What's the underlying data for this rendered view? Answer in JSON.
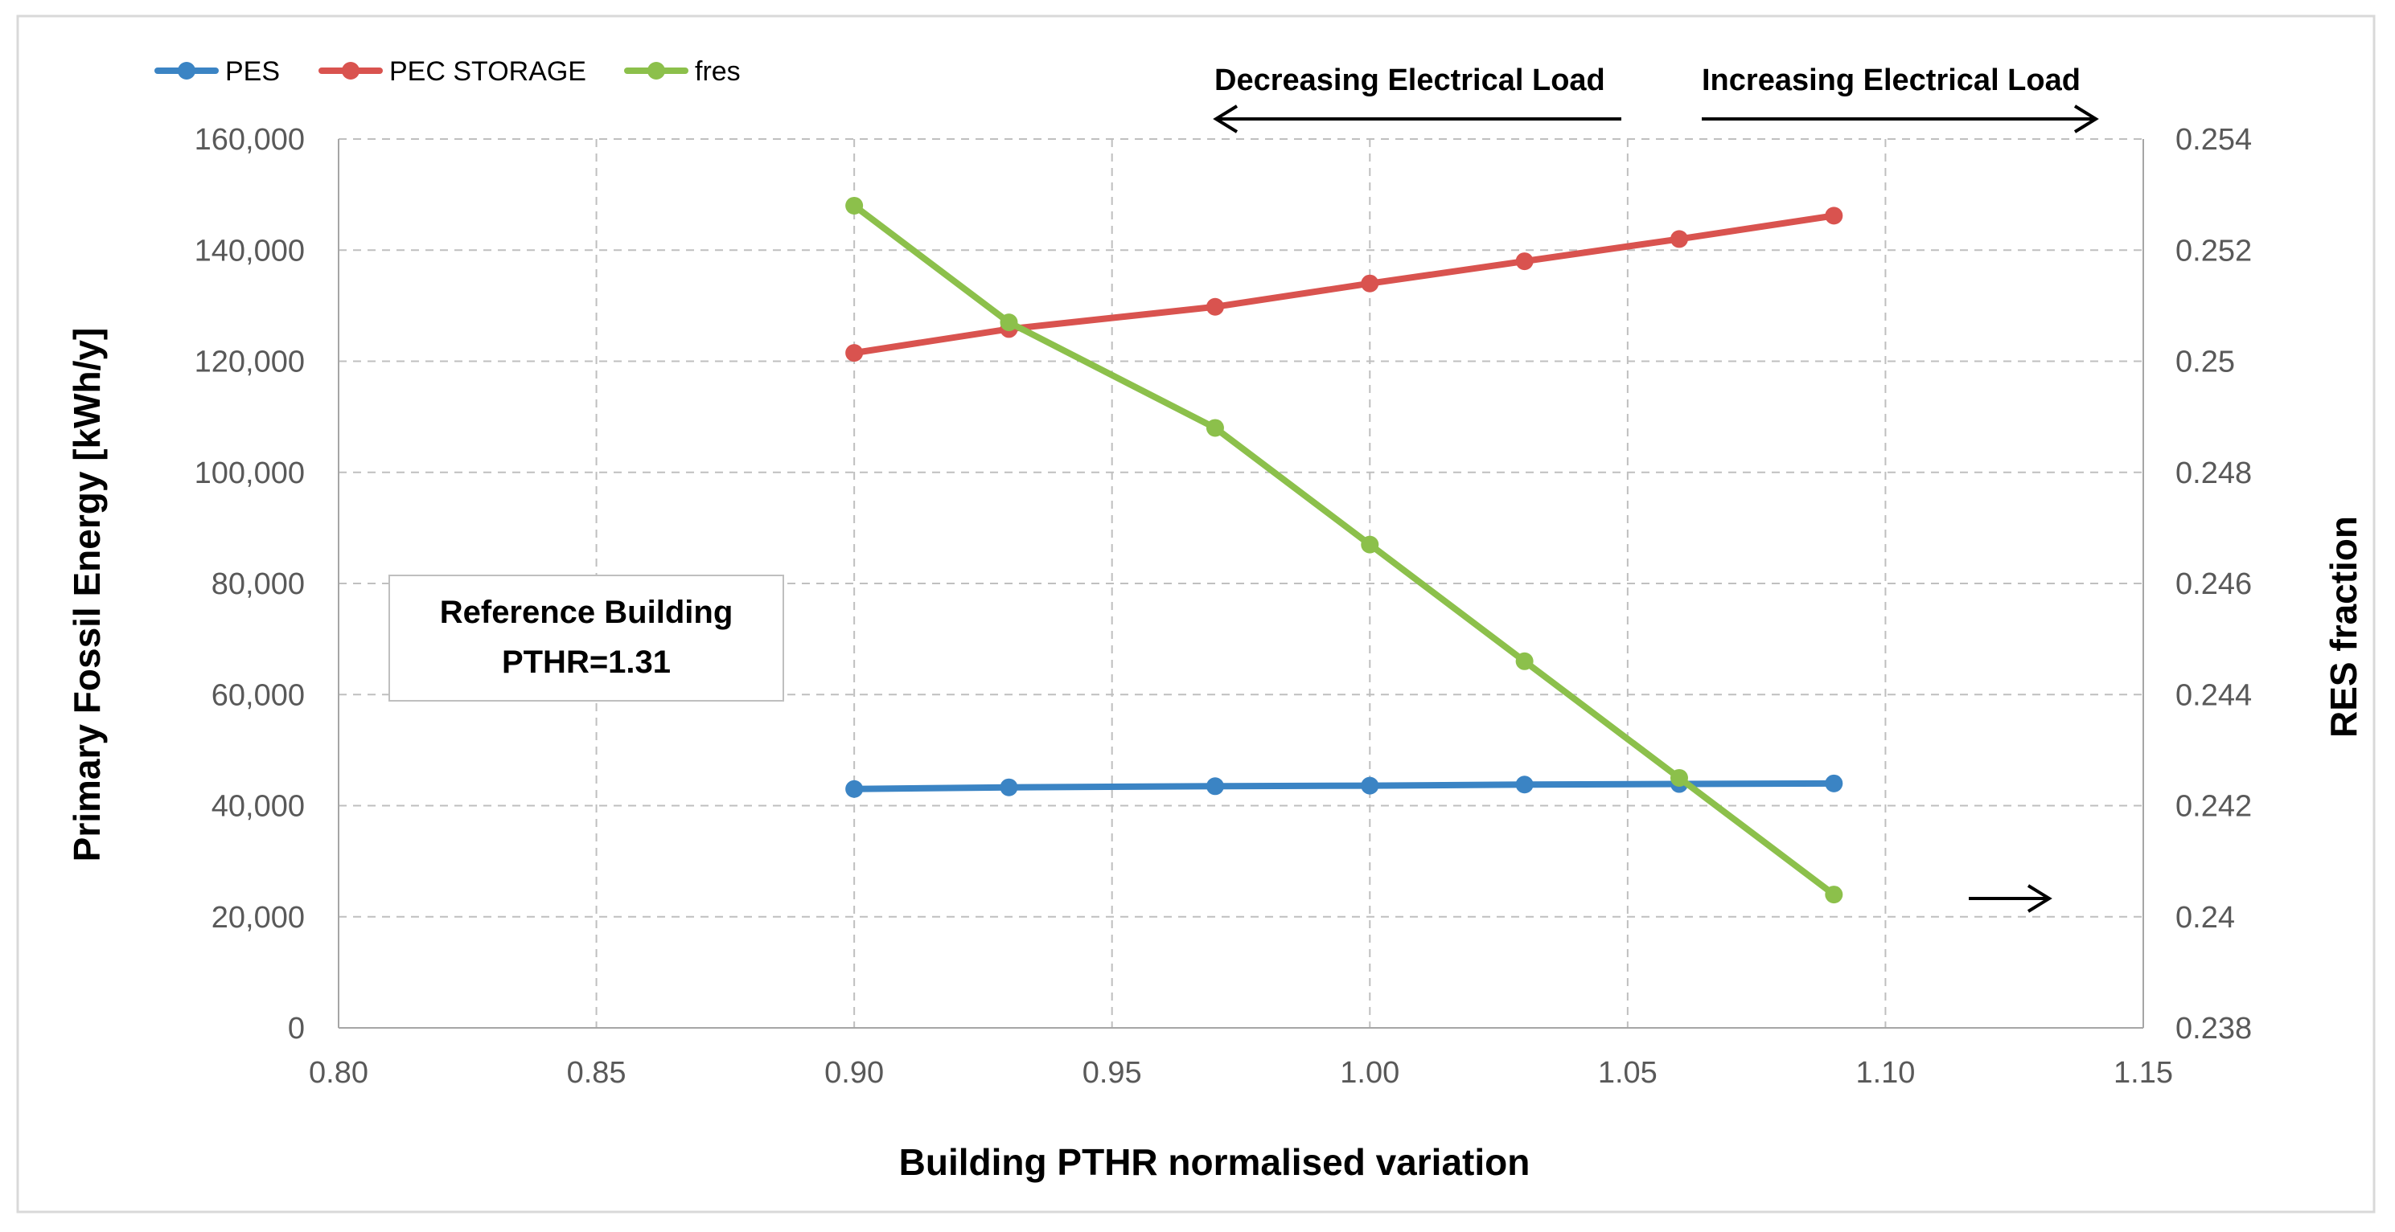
{
  "chart_data": {
    "type": "line",
    "x": [
      0.9,
      0.93,
      0.97,
      1.0,
      1.03,
      1.06,
      1.09
    ],
    "series": [
      {
        "name": "PES",
        "axis": "left",
        "color": "#3b84c4",
        "values": [
          43000,
          43300,
          43500,
          43600,
          43800,
          43900,
          44000
        ]
      },
      {
        "name": "PEC STORAGE",
        "axis": "left",
        "color": "#d9534f",
        "values": [
          121500,
          125800,
          129800,
          134000,
          138000,
          142000,
          146200
        ]
      },
      {
        "name": "fres",
        "axis": "right",
        "color": "#8cc04b",
        "values": [
          0.2528,
          0.2507,
          0.2488,
          0.2467,
          0.2446,
          0.2425,
          0.2404
        ]
      }
    ],
    "xlabel": "Building PTHR normalised variation",
    "ylabel": "Primary Fossil Energy [kWh/y]",
    "y2label": "RES fraction",
    "xlim": [
      0.8,
      1.15
    ],
    "ylim": [
      0,
      160000
    ],
    "y2lim": [
      0.238,
      0.254
    ],
    "x_ticks": [
      "0.80",
      "0.85",
      "0.90",
      "0.95",
      "1.00",
      "1.05",
      "1.10",
      "1.15"
    ],
    "y_ticks": [
      "0",
      "20,000",
      "40,000",
      "60,000",
      "80,000",
      "100,000",
      "120,000",
      "140,000",
      "160,000"
    ],
    "y2_ticks": [
      "0.238",
      "0.24",
      "0.242",
      "0.244",
      "0.246",
      "0.248",
      "0.25",
      "0.252",
      "0.254"
    ],
    "grid": true,
    "legend_position": "top-left",
    "annotations": {
      "decreasing": "Decreasing Electrical Load",
      "increasing": "Increasing Electrical Load",
      "reference_line1": "Reference Building",
      "reference_line2": "PTHR=1.31"
    }
  },
  "colors": {
    "grid": "#bfbfbf",
    "axis": "#a6a6a6",
    "frame": "#d9d9d9"
  }
}
